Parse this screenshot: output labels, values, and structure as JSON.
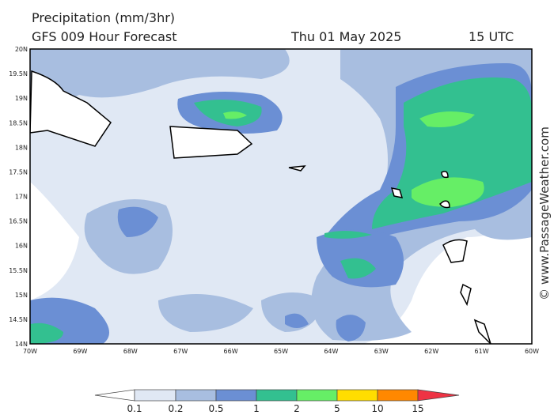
{
  "header": {
    "title": "Precipitation (mm/3hr)",
    "subtitle": "GFS 009 Hour Forecast",
    "date": "Thu 01 May 2025",
    "time": "15 UTC"
  },
  "map": {
    "lat_labels": [
      "20N",
      "19.5N",
      "19N",
      "18.5N",
      "18N",
      "17.5N",
      "17N",
      "16.5N",
      "16N",
      "15.5N",
      "15N",
      "14.5N",
      "14N"
    ],
    "lon_labels": [
      "70W",
      "69W",
      "68W",
      "67W",
      "66W",
      "65W",
      "64W",
      "63W",
      "62W",
      "61W",
      "60W"
    ]
  },
  "legend": {
    "labels": [
      "0.1",
      "0.2",
      "0.5",
      "1",
      "2",
      "5",
      "10",
      "15"
    ]
  },
  "watermark": "© www.PassageWeather.com"
}
